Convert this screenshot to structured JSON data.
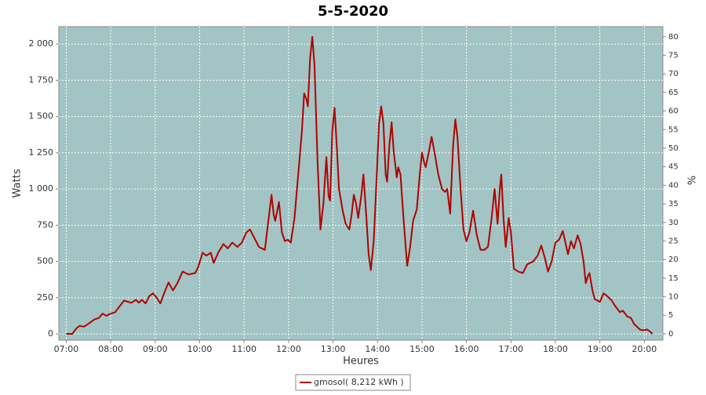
{
  "chart_data": {
    "type": "line",
    "title": "5-5-2020",
    "x_label": "Heures",
    "y_label": "Watts",
    "y2_label": "%",
    "x": [
      "07:00",
      "07:08",
      "07:14",
      "07:18",
      "07:24",
      "07:30",
      "07:38",
      "07:44",
      "07:49",
      "07:54",
      "08:00",
      "08:06",
      "08:12",
      "08:18",
      "08:24",
      "08:28",
      "08:34",
      "08:38",
      "08:42",
      "08:47",
      "08:52",
      "08:57",
      "09:02",
      "09:07",
      "09:12",
      "09:18",
      "09:24",
      "09:30",
      "09:37",
      "09:45",
      "09:54",
      "09:58",
      "10:04",
      "10:09",
      "10:15",
      "10:19",
      "10:25",
      "10:32",
      "10:38",
      "10:44",
      "10:51",
      "10:57",
      "11:03",
      "11:08",
      "11:14",
      "11:20",
      "11:28",
      "11:32",
      "11:37",
      "11:40",
      "11:42",
      "11:47",
      "11:51",
      "11:55",
      "11:59",
      "12:03",
      "12:08",
      "12:13",
      "12:18",
      "12:21",
      "12:24",
      "12:26",
      "12:29",
      "12:32",
      "12:35",
      "12:39",
      "12:43",
      "12:47",
      "12:51",
      "12:54",
      "12:56",
      "12:59",
      "13:02",
      "13:05",
      "13:08",
      "13:13",
      "13:17",
      "13:22",
      "13:25",
      "13:28",
      "13:31",
      "13:34",
      "13:38",
      "13:41",
      "13:45",
      "13:48",
      "13:51",
      "13:55",
      "13:59",
      "14:02",
      "14:05",
      "14:08",
      "14:11",
      "14:13",
      "14:16",
      "14:19",
      "14:22",
      "14:26",
      "14:28",
      "14:31",
      "14:35",
      "14:40",
      "14:44",
      "14:48",
      "14:53",
      "14:57",
      "15:00",
      "15:03",
      "15:05",
      "15:09",
      "15:13",
      "15:17",
      "15:22",
      "15:27",
      "15:31",
      "15:34",
      "15:38",
      "15:42",
      "15:45",
      "15:48",
      "15:52",
      "15:56",
      "16:00",
      "16:04",
      "16:09",
      "16:14",
      "16:19",
      "16:24",
      "16:29",
      "16:34",
      "16:38",
      "16:42",
      "16:45",
      "16:47",
      "16:50",
      "16:53",
      "16:57",
      "17:00",
      "17:04",
      "17:10",
      "17:16",
      "17:22",
      "17:30",
      "17:36",
      "17:41",
      "17:46",
      "17:50",
      "17:55",
      "18:00",
      "18:05",
      "18:10",
      "18:14",
      "18:17",
      "18:21",
      "18:25",
      "18:30",
      "18:34",
      "18:38",
      "18:41",
      "18:44",
      "18:46",
      "18:50",
      "18:53",
      "18:57",
      "19:00",
      "19:05",
      "19:10",
      "19:16",
      "19:21",
      "19:27",
      "19:31",
      "19:37",
      "19:42",
      "19:46",
      "19:50",
      "19:54",
      "19:58",
      "20:04",
      "20:08",
      "20:11"
    ],
    "series": [
      {
        "name": "gmosol( 8,212 kWh )",
        "color": "#b00000",
        "values": [
          0,
          0,
          40,
          55,
          50,
          70,
          100,
          110,
          140,
          125,
          140,
          150,
          190,
          230,
          220,
          215,
          235,
          215,
          235,
          210,
          260,
          280,
          250,
          210,
          280,
          355,
          300,
          350,
          430,
          410,
          420,
          460,
          560,
          540,
          560,
          490,
          560,
          620,
          590,
          630,
          600,
          630,
          700,
          720,
          660,
          600,
          580,
          750,
          960,
          820,
          780,
          910,
          700,
          640,
          650,
          630,
          800,
          1100,
          1400,
          1660,
          1620,
          1570,
          1900,
          2050,
          1850,
          1200,
          720,
          900,
          1220,
          950,
          920,
          1400,
          1560,
          1300,
          1000,
          850,
          760,
          720,
          820,
          960,
          900,
          800,
          950,
          1100,
          800,
          550,
          440,
          650,
          1100,
          1450,
          1570,
          1450,
          1100,
          1050,
          1300,
          1460,
          1250,
          1080,
          1150,
          1100,
          800,
          470,
          600,
          780,
          860,
          1100,
          1250,
          1180,
          1150,
          1250,
          1360,
          1250,
          1100,
          1000,
          980,
          1000,
          830,
          1300,
          1480,
          1350,
          1000,
          720,
          640,
          700,
          850,
          680,
          580,
          580,
          600,
          800,
          1000,
          760,
          1000,
          1100,
          800,
          600,
          800,
          700,
          450,
          430,
          420,
          480,
          500,
          540,
          610,
          520,
          430,
          500,
          630,
          650,
          710,
          620,
          550,
          640,
          590,
          680,
          620,
          500,
          350,
          400,
          420,
          300,
          240,
          230,
          220,
          280,
          260,
          230,
          190,
          150,
          160,
          120,
          110,
          70,
          50,
          30,
          25,
          30,
          15,
          0
        ]
      }
    ],
    "xlim": [
      "06:50",
      "20:25"
    ],
    "xticks": [
      "07:00",
      "08:00",
      "09:00",
      "10:00",
      "11:00",
      "12:00",
      "13:00",
      "14:00",
      "15:00",
      "16:00",
      "17:00",
      "18:00",
      "19:00",
      "20:00"
    ],
    "ylim": [
      -43,
      2120
    ],
    "yticks": [
      0,
      250,
      500,
      750,
      {
        "value": 1000,
        "label": "1 000"
      },
      {
        "value": 1250,
        "label": "1 250"
      },
      {
        "value": 1500,
        "label": "1 500"
      },
      {
        "value": 1750,
        "label": "1 750"
      },
      {
        "value": 2000,
        "label": "2 000"
      }
    ],
    "y2lim": [
      -1.7,
      82.7
    ],
    "y2ticks": [
      0,
      5,
      10,
      15,
      20,
      25,
      30,
      35,
      40,
      45,
      50,
      55,
      60,
      65,
      70,
      75,
      80
    ],
    "grid": true,
    "background": "#a2c4c4",
    "legend": "bottom"
  }
}
